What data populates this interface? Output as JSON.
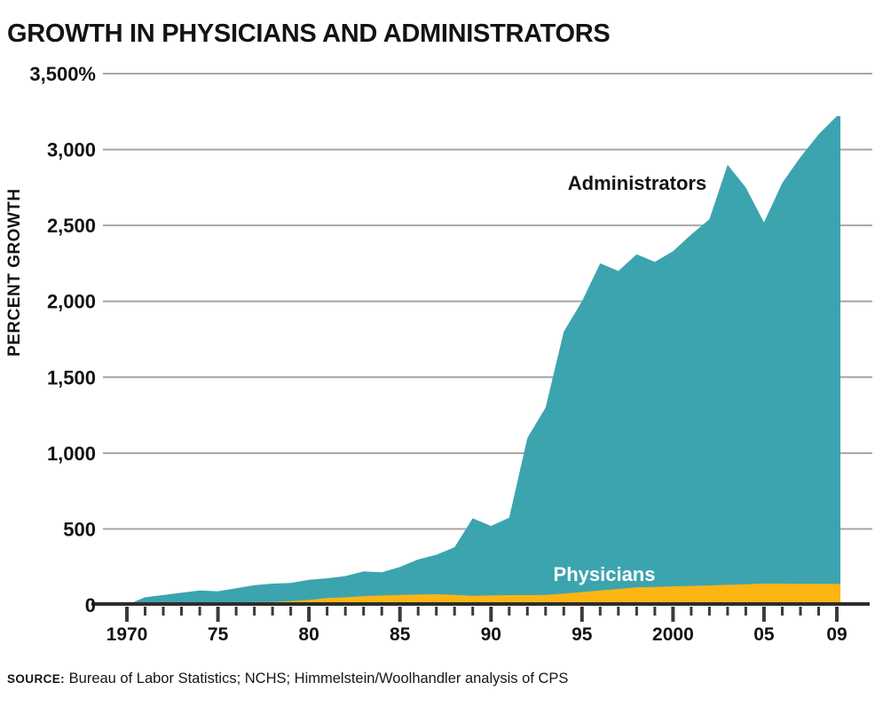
{
  "title": "GROWTH IN PHYSICIANS AND ADMINISTRATORS",
  "source": {
    "prefix": "SOURCE:",
    "text": " Bureau of Labor Statistics; NCHS; Himmelstein/Woolhandler analysis of CPS"
  },
  "colors": {
    "administrators": "#3CA4AE",
    "physicians": "#FCB515",
    "gridline": "#A6A6A6",
    "axis": "#2D2D2D",
    "tick": "#3A3A3A",
    "text": "#131313",
    "physicians_label": "#FFFFFF"
  },
  "chart_data": {
    "type": "area",
    "title": "GROWTH IN PHYSICIANS AND ADMINISTRATORS",
    "xlabel": "",
    "ylabel": "PERCENT GROWTH",
    "ylim": [
      0,
      3500
    ],
    "grid": true,
    "legend_position": "inline-annotations",
    "x": [
      1970,
      1971,
      1972,
      1973,
      1974,
      1975,
      1976,
      1977,
      1978,
      1979,
      1980,
      1981,
      1982,
      1983,
      1984,
      1985,
      1986,
      1987,
      1988,
      1989,
      1990,
      1991,
      1992,
      1993,
      1994,
      1995,
      1996,
      1997,
      1998,
      1999,
      2000,
      2001,
      2002,
      2003,
      2004,
      2005,
      2006,
      2007,
      2008,
      2009
    ],
    "series": [
      {
        "name": "Administrators",
        "color": "#3CA4AE",
        "values": [
          0,
          50,
          65,
          80,
          95,
          90,
          110,
          130,
          140,
          145,
          165,
          175,
          190,
          220,
          215,
          250,
          300,
          330,
          380,
          570,
          520,
          575,
          1100,
          1300,
          1800,
          2000,
          2250,
          2200,
          2310,
          2260,
          2330,
          2440,
          2540,
          2900,
          2750,
          2520,
          2780,
          2950,
          3100,
          3220
        ]
      },
      {
        "name": "Physicians",
        "color": "#FCB515",
        "values": [
          0,
          3,
          6,
          9,
          12,
          14,
          16,
          18,
          20,
          25,
          32,
          45,
          50,
          58,
          62,
          66,
          68,
          70,
          66,
          60,
          62,
          64,
          64,
          66,
          75,
          85,
          95,
          105,
          115,
          118,
          122,
          125,
          128,
          132,
          136,
          140,
          140,
          139,
          139,
          138
        ]
      }
    ],
    "y_ticks": [
      {
        "value": 3500,
        "label": "3,500%"
      },
      {
        "value": 3000,
        "label": "3,000"
      },
      {
        "value": 2500,
        "label": "2,500"
      },
      {
        "value": 2000,
        "label": "2,000"
      },
      {
        "value": 1500,
        "label": "1,500"
      },
      {
        "value": 1000,
        "label": "1,000"
      },
      {
        "value": 500,
        "label": "500"
      },
      {
        "value": 0,
        "label": "0"
      }
    ],
    "x_tick_labels": [
      {
        "year": 1970,
        "label": "1970"
      },
      {
        "year": 1975,
        "label": "75"
      },
      {
        "year": 1980,
        "label": "80"
      },
      {
        "year": 1985,
        "label": "85"
      },
      {
        "year": 1990,
        "label": "90"
      },
      {
        "year": 1995,
        "label": "95"
      },
      {
        "year": 2000,
        "label": "2000"
      },
      {
        "year": 2005,
        "label": "05"
      },
      {
        "year": 2009,
        "label": "09"
      }
    ],
    "annotations": [
      {
        "text": "Administrators",
        "x": 718,
        "y": 207,
        "color": "#131313"
      },
      {
        "text": "Physicians",
        "x": 681,
        "y": 648,
        "color": "#FFFFFF"
      }
    ]
  }
}
